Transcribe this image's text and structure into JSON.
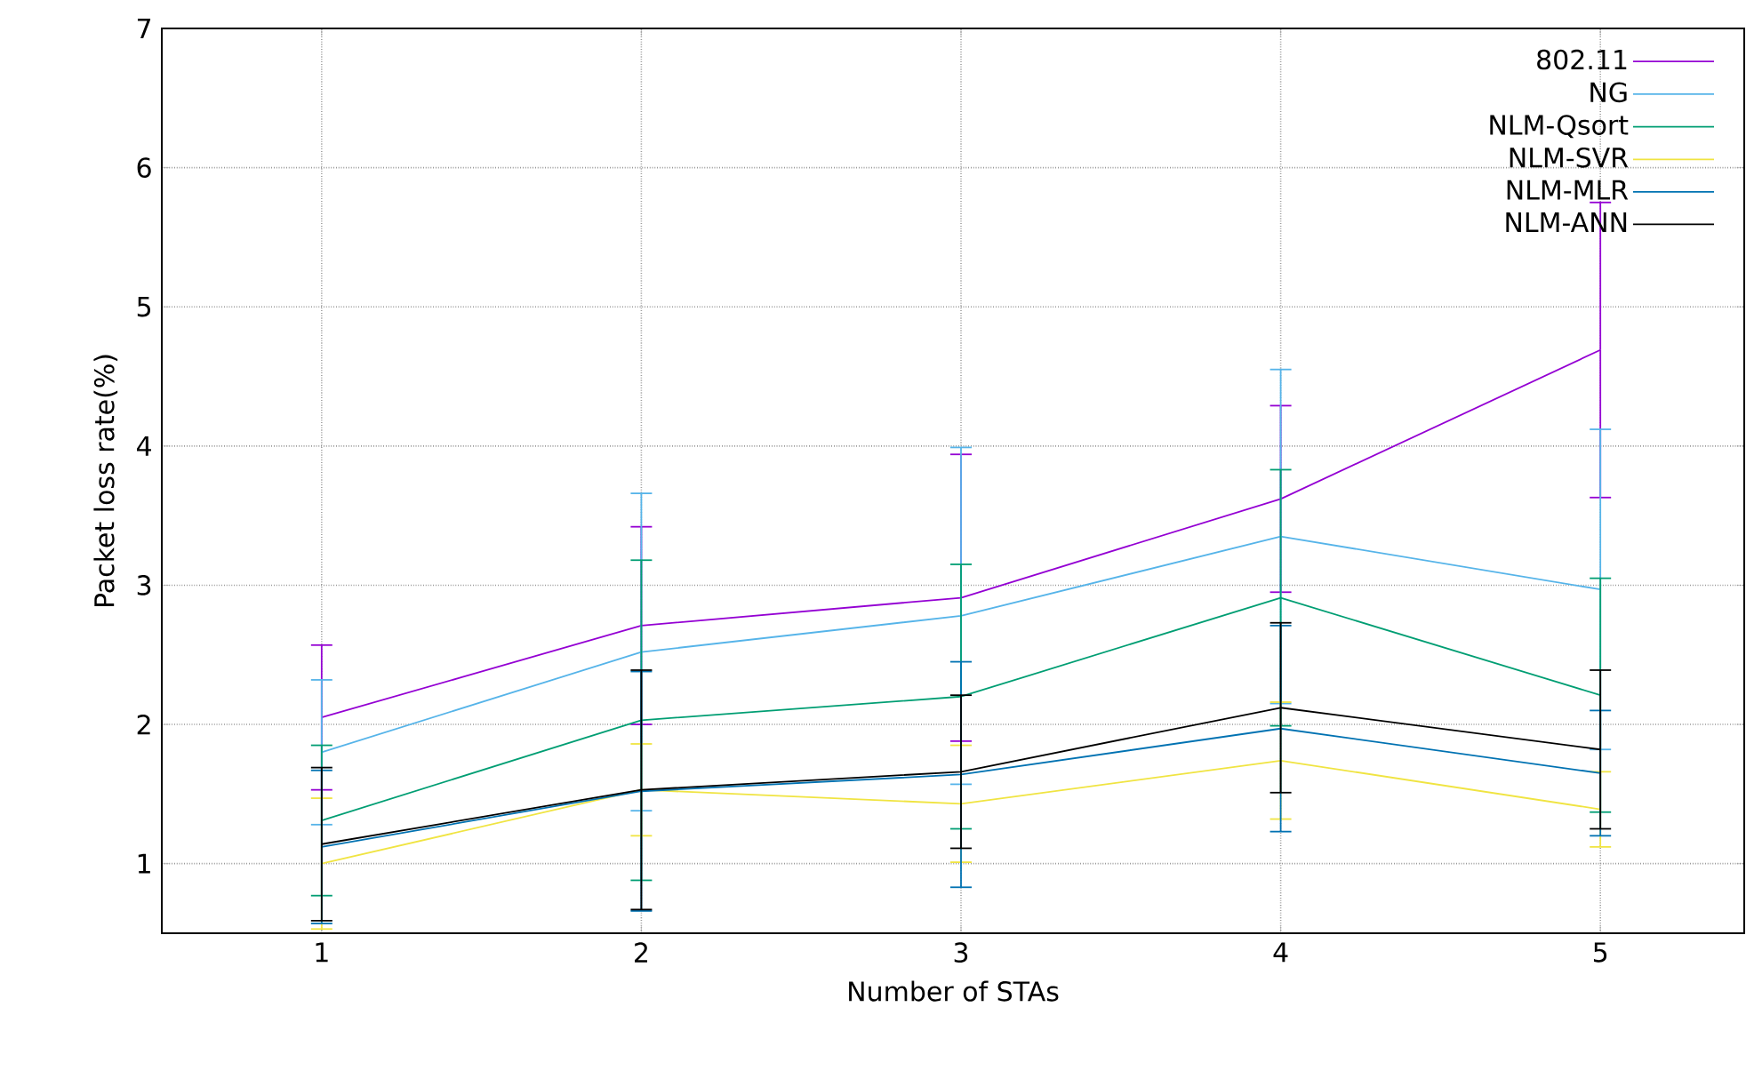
{
  "chart_data": {
    "type": "line",
    "xlabel": "Number of STAs",
    "ylabel": "Packet loss rate(%)",
    "x": [
      1,
      2,
      3,
      4,
      5
    ],
    "series": [
      {
        "name": "802.11",
        "color": "#9400d3",
        "values": [
          2.05,
          2.71,
          2.91,
          3.62,
          4.69
        ],
        "errors": [
          0.52,
          0.71,
          1.03,
          0.67,
          1.06
        ]
      },
      {
        "name": "NG",
        "color": "#56b4e9",
        "values": [
          1.8,
          2.52,
          2.78,
          3.35,
          2.97
        ],
        "errors": [
          0.52,
          1.14,
          1.21,
          1.2,
          1.15
        ]
      },
      {
        "name": "NLM-Qsort",
        "color": "#009e73",
        "values": [
          1.31,
          2.03,
          2.2,
          2.91,
          2.21
        ],
        "errors": [
          0.54,
          1.15,
          0.95,
          0.92,
          0.84
        ]
      },
      {
        "name": "NLM-SVR",
        "color": "#f0e442",
        "values": [
          1.0,
          1.53,
          1.43,
          1.74,
          1.39
        ],
        "errors": [
          0.47,
          0.33,
          0.42,
          0.42,
          0.27
        ]
      },
      {
        "name": "NLM-MLR",
        "color": "#0072b2",
        "values": [
          1.12,
          1.52,
          1.64,
          1.97,
          1.65
        ],
        "errors": [
          0.55,
          0.86,
          0.81,
          0.74,
          0.45
        ]
      },
      {
        "name": "NLM-ANN",
        "color": "#000000",
        "values": [
          1.14,
          1.53,
          1.66,
          2.12,
          1.82
        ],
        "errors": [
          0.55,
          0.86,
          0.55,
          0.61,
          0.57
        ]
      }
    ],
    "xlim": [
      0.5,
      5.45
    ],
    "ylim": [
      0.5,
      7
    ],
    "xticks": [
      1,
      2,
      3,
      4,
      5
    ],
    "yticks": [
      1,
      2,
      3,
      4,
      5,
      6,
      7
    ],
    "grid": true,
    "legend": "top right"
  }
}
